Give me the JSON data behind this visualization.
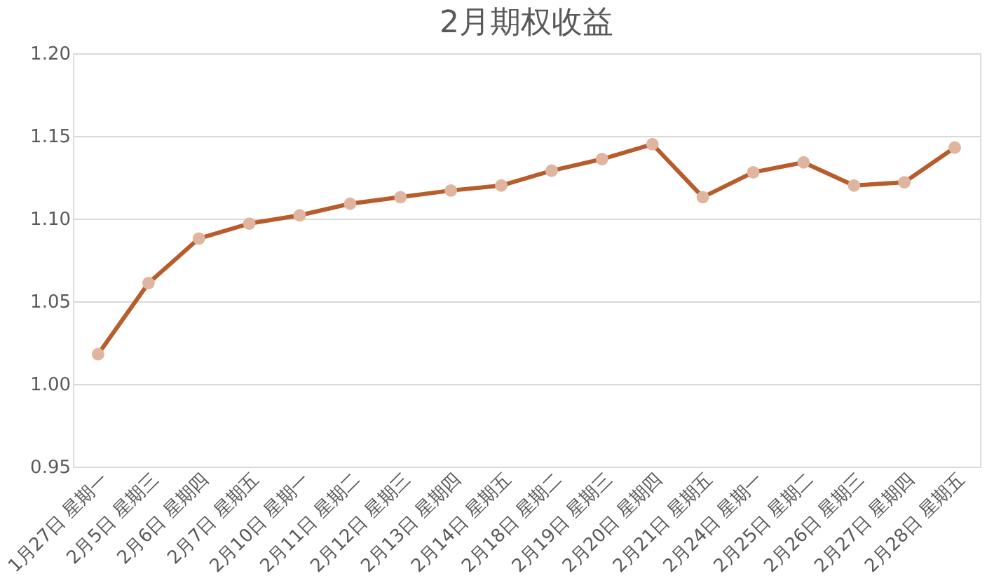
{
  "chart_data": {
    "type": "line",
    "title": "2月期权收益",
    "categories": [
      "1月27日 星期一",
      "2月5日 星期三",
      "2月6日 星期四",
      "2月7日 星期五",
      "2月10日 星期一",
      "2月11日 星期二",
      "2月12日 星期三",
      "2月13日 星期四",
      "2月14日 星期五",
      "2月18日 星期二",
      "2月19日 星期三",
      "2月20日 星期四",
      "2月21日 星期五",
      "2月24日 星期一",
      "2月25日 星期二",
      "2月26日 星期三",
      "2月27日 星期四",
      "2月28日 星期五"
    ],
    "series": [
      {
        "color": "#b85c2b",
        "values": [
          1.018,
          1.061,
          1.088,
          1.097,
          1.102,
          1.109,
          1.113,
          1.117,
          1.12,
          1.129,
          1.136,
          1.145,
          1.113,
          1.128,
          1.134,
          1.12,
          1.122,
          1.143
        ]
      }
    ],
    "ylim": [
      0.95,
      1.2
    ],
    "yticks": [
      {
        "value": 0.95,
        "label": "0.95"
      },
      {
        "value": 1.0,
        "label": "1.00"
      },
      {
        "value": 1.05,
        "label": "1.05"
      },
      {
        "value": 1.1,
        "label": "1.10"
      },
      {
        "value": 1.15,
        "label": "1.15"
      },
      {
        "value": 1.2,
        "label": "1.20"
      }
    ],
    "grid": "y",
    "marker": "circle",
    "line_style": "solid"
  }
}
